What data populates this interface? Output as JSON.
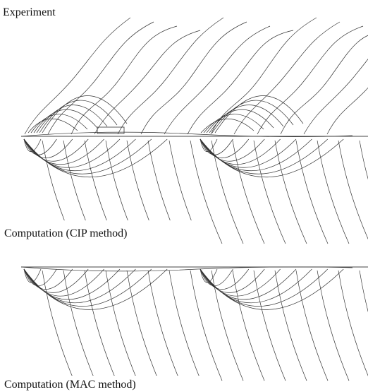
{
  "panels": [
    {
      "label": "Experiment"
    },
    {
      "label": "Computation (CIP method)"
    },
    {
      "label": "Computation (MAC method)"
    }
  ]
}
